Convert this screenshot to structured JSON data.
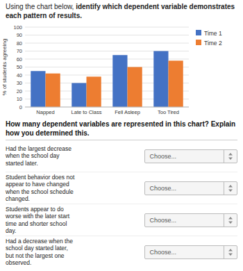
{
  "chart_data": {
    "type": "bar",
    "ylabel": "% of students agreeing",
    "categories": [
      "Napped",
      "Late to Class",
      "Fell Asleep",
      "Too Tired"
    ],
    "series": [
      {
        "name": "Time 1",
        "color": "#4472C4",
        "values": [
          45,
          30,
          65,
          70
        ]
      },
      {
        "name": "Time 2",
        "color": "#ED7D31",
        "values": [
          42,
          38,
          50,
          58
        ]
      }
    ],
    "ylim": [
      0,
      100
    ],
    "yticks": [
      0,
      10,
      20,
      30,
      40,
      50,
      60,
      70,
      80,
      90,
      100
    ],
    "grid": true,
    "legend": "right"
  },
  "page": {
    "instruction_plain": "Using the chart below, ",
    "instruction_bold": "identify which dependent variable demonstrates each pattern of results.",
    "question": "How many dependent variables are represented in this chart? Explain how you determined this.",
    "items": [
      "Had the largest decrease\nwhen the school day\nstarted later.",
      "Student behavior does not\nappear to have changed\nwhen the school schedule\nchanged.",
      "Students appear to do\nworse with the later start\ntime and shorter school\nday.",
      "Had a decrease when the\nschool day started later,\nbut not the largest one\nobserved."
    ],
    "dropdown_placeholder": "Choose..."
  }
}
